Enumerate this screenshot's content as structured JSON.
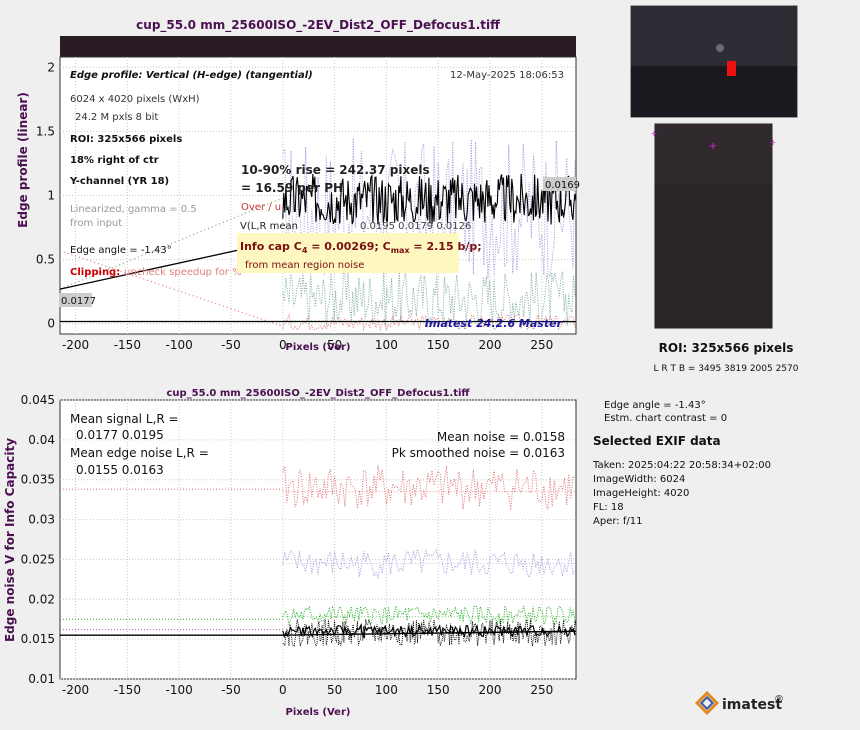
{
  "chart_data": [
    {
      "type": "line",
      "title": "cup_55.0 mm_25600ISO_-2EV_Dist2_OFF_Defocus1.tiff",
      "xlabel": "Pixels (Ver)",
      "ylabel": "Edge profile (linear)",
      "xlim": [
        -215,
        283
      ],
      "ylim": [
        -0.08,
        2.08
      ],
      "xticks": [
        "-200",
        "-150",
        "-100",
        "-50",
        "0",
        "50",
        "100",
        "150",
        "200",
        "250"
      ],
      "yticks": [
        "0",
        "0.5",
        "1",
        "1.5",
        "2"
      ],
      "grid": true,
      "annotations": {
        "heading": "Edge profile: Vertical (H-edge) (tangential)",
        "datetime": "12-May-2025 18:06:53",
        "size": "6024 x 4020 pixels (WxH)",
        "mpxls": "24.2 M pxls   8 bit",
        "roi": "ROI:  325x566 pixels",
        "pos": "18% right of ctr",
        "channel": "Y-channel  (YR 18)",
        "lin1": "Linearized, gamma = 0.5",
        "lin2": "from input",
        "angle": "Edge angle = -1.43°",
        "clip_label": "Clipping:",
        "clip_text": "uncheck speedup for %",
        "rise1": "10-90% rise = 242.37 pixels",
        "rise2": "=  16.59 per PH",
        "over": "Over / u",
        "vlr": "V(L,R mean",
        "vlr_vals": "0.0195 0.0179  0.0126",
        "info_prefix": "Info cap C",
        "info_sub": "4",
        "info_mid": " = 0.00269;  C",
        "info_sub2": "max",
        "info_suffix": " = 2.15 b/p;",
        "info_note": "from mean region noise",
        "left_level": "0.0177",
        "right_level": "0.0169",
        "watermark": "Imatest 24.2.6 Master"
      },
      "series": [
        {
          "x": [
            -215,
            0,
            283
          ],
          "y": [
            0.0177,
            0.0177,
            0.0169
          ],
          "color": "#000000"
        }
      ]
    },
    {
      "type": "line",
      "title": "cup_55.0 mm_25600ISO_-2EV_Dist2_OFF_Defocus1.tiff",
      "xlabel": "Pixels (Ver)",
      "ylabel": "Edge noise V for Info Capacity",
      "xlim": [
        -215,
        283
      ],
      "ylim": [
        0.01,
        0.045
      ],
      "xticks": [
        "-200",
        "-150",
        "-100",
        "-50",
        "0",
        "50",
        "100",
        "150",
        "200",
        "250"
      ],
      "yticks": [
        "0.01",
        "0.015",
        "0.02",
        "0.025",
        "0.03",
        "0.035",
        "0.04",
        "0.045"
      ],
      "grid": true,
      "annotations": {
        "ms1": "Mean signal L,R =",
        "ms2": "0.0177  0.0195",
        "me1": "Mean edge noise L,R =",
        "me2": "0.0155  0.0163",
        "mn": "Mean noise = 0.0158",
        "pk": "Pk smoothed noise = 0.0163"
      },
      "series": [
        {
          "x": [
            0,
            283
          ],
          "y": [
            0.0335,
            0.0335
          ],
          "color": "#e07070"
        },
        {
          "x": [
            0,
            283
          ],
          "y": [
            0.0245,
            0.0245
          ],
          "color": "#9999dd"
        },
        {
          "x": [
            0,
            283
          ],
          "y": [
            0.0178,
            0.0178
          ],
          "color": "#22aa22"
        },
        {
          "x": [
            -215,
            0,
            283
          ],
          "y": [
            0.0155,
            0.0155,
            0.016
          ],
          "color": "#000000"
        }
      ]
    }
  ],
  "sidebar": {
    "roi_label": "ROI:  325x566 pixels",
    "lrtb": "L R  T B = 3495 3819   2005 2570",
    "edge_angle": "Edge angle = -1.43°",
    "contrast": "Estm. chart contrast = 0",
    "exif_title": "Selected EXIF data",
    "exif": [
      "Taken: 2025:04:22 20:58:34+02:00",
      "ImageWidth:  6024",
      "ImageHeight:  4020",
      "FL:    18",
      "Aper:  f/11"
    ],
    "logo": "imatest",
    "logo_mark": "®"
  },
  "colors": {
    "title": "#4a1050",
    "clip": "#cc0000",
    "watermark": "#1a1a9a",
    "info_box": "#fff7c0"
  }
}
